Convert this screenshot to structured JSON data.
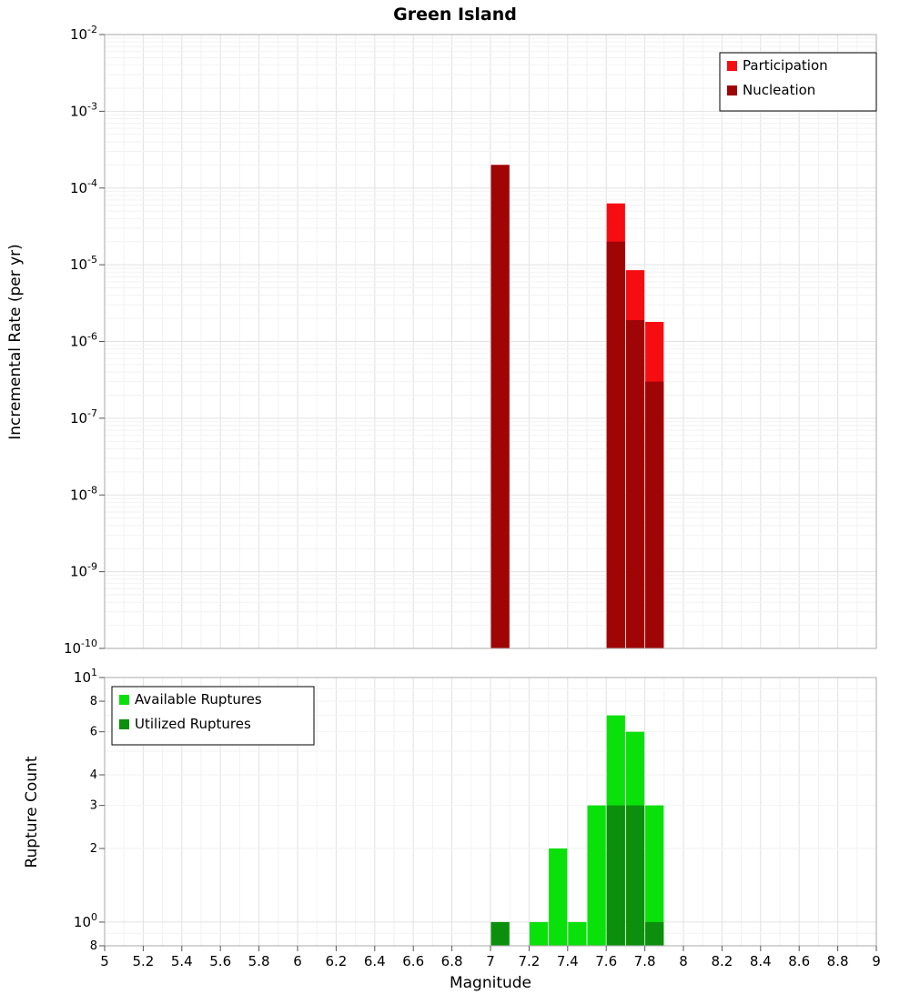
{
  "title": "Green Island",
  "xlabel": "Magnitude",
  "top_panel": {
    "ylabel": "Incremental Rate (per yr)",
    "ytick_exponents": [
      -2,
      -3,
      -4,
      -5,
      -6,
      -7,
      -8,
      -9,
      -10
    ]
  },
  "bottom_panel": {
    "ylabel": "Rupture Count",
    "yticks": [
      {
        "v": 10,
        "t": "10",
        "e": "1"
      },
      {
        "v": 8,
        "t": "8"
      },
      {
        "v": 6,
        "t": "6"
      },
      {
        "v": 4,
        "t": "4"
      },
      {
        "v": 3,
        "t": "3"
      },
      {
        "v": 2,
        "t": "2"
      },
      {
        "v": 1,
        "t": "10",
        "e": "0"
      },
      {
        "v": 0.8,
        "t": "8"
      }
    ]
  },
  "xticks": [
    "5",
    "5.2",
    "5.4",
    "5.6",
    "5.8",
    "6",
    "6.2",
    "6.4",
    "6.6",
    "6.8",
    "7",
    "7.2",
    "7.4",
    "7.6",
    "7.8",
    "8",
    "8.2",
    "8.4",
    "8.6",
    "8.8",
    "9"
  ],
  "chart_data": [
    {
      "type": "bar",
      "title": "Green Island",
      "xlabel": "Magnitude",
      "ylabel": "Incremental Rate (per yr)",
      "yscale": "log",
      "ylim": [
        1e-10,
        0.01
      ],
      "xlim": [
        5,
        9
      ],
      "grid": true,
      "legend_position": "top-right",
      "bin_width": 0.1,
      "x_bin_centers": [
        7.05,
        7.65,
        7.75,
        7.85
      ],
      "series": [
        {
          "name": "Participation",
          "color": "#f60d12",
          "values": [
            0.0002,
            6.3e-05,
            8.5e-06,
            1.8e-06
          ]
        },
        {
          "name": "Nucleation",
          "color": "#a00505",
          "values": [
            0.0002,
            2e-05,
            1.9e-06,
            3e-07
          ]
        }
      ]
    },
    {
      "type": "bar",
      "xlabel": "Magnitude",
      "ylabel": "Rupture Count",
      "yscale": "log",
      "ylim": [
        0.8,
        10
      ],
      "xlim": [
        5,
        9
      ],
      "grid": true,
      "legend_position": "top-left",
      "bin_width": 0.1,
      "x_bin_centers": [
        7.05,
        7.25,
        7.35,
        7.45,
        7.55,
        7.65,
        7.75,
        7.85
      ],
      "series": [
        {
          "name": "Available Ruptures",
          "color": "#0ae00a",
          "values": [
            1,
            1,
            2,
            1,
            3,
            7,
            6,
            3
          ]
        },
        {
          "name": "Utilized Ruptures",
          "color": "#0c8f0c",
          "values": [
            1,
            0,
            0,
            0,
            0,
            3,
            3,
            1
          ]
        }
      ]
    }
  ]
}
